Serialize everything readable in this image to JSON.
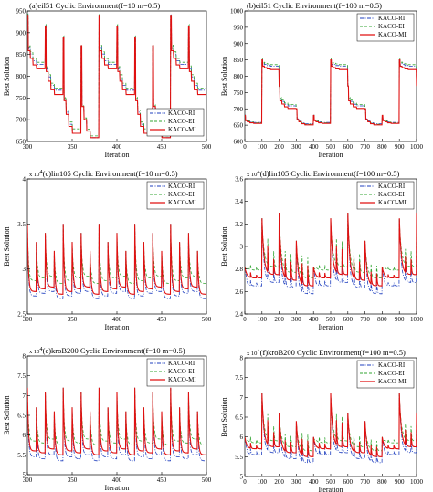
{
  "colors": {
    "KACO-RI": "#1f3fbf",
    "KACO-EI": "#33a533",
    "KACO-MI": "#e01010"
  },
  "chart_data": [
    {
      "type": "line",
      "title": "(a)eil51 Cyclic Environment(f=10 m=0.5)",
      "xlabel": "Iteration",
      "ylabel": "Best Solution",
      "multiplier": "",
      "xlim": [
        300,
        500
      ],
      "ylim": [
        650,
        950
      ],
      "xticks": [
        300,
        350,
        400,
        450,
        500
      ],
      "yticks": [
        650,
        700,
        750,
        800,
        850,
        900,
        950
      ],
      "legend_position": "bottom-right",
      "pattern": {
        "period": 20,
        "cycle": 4,
        "envs": [
          {
            "peak": 940,
            "base": 815
          },
          {
            "peak": 915,
            "base": 755
          },
          {
            "peak": 890,
            "base": 665
          },
          {
            "peak": 870,
            "base": 655
          }
        ],
        "spikes": 0,
        "sharp": false
      },
      "series_offsets": {
        "KACO-RI": [
          10,
          10,
          5,
          0
        ],
        "KACO-EI": [
          15,
          15,
          10,
          4
        ],
        "KACO-MI": [
          0,
          0,
          0,
          0
        ]
      },
      "series": [
        {
          "name": "KACO-RI"
        },
        {
          "name": "KACO-EI"
        },
        {
          "name": "KACO-MI"
        }
      ]
    },
    {
      "type": "line",
      "title": "(b)eil51 Cyclic Environment(f=100 m=0.5)",
      "xlabel": "Iteration",
      "ylabel": "Best Solution",
      "multiplier": "",
      "xlim": [
        0,
        1000
      ],
      "ylim": [
        600,
        1000
      ],
      "xticks": [
        0,
        100,
        200,
        300,
        400,
        500,
        600,
        700,
        800,
        900,
        1000
      ],
      "yticks": [
        600,
        650,
        700,
        750,
        800,
        850,
        900,
        950,
        1000
      ],
      "legend_position": "top-right",
      "pattern": {
        "period": 100,
        "cycle": 4,
        "envs": [
          {
            "peak": 680,
            "base": 655
          },
          {
            "peak": 850,
            "base": 820
          },
          {
            "peak": 770,
            "base": 700
          },
          {
            "peak": 700,
            "base": 650
          }
        ],
        "spikes": 0,
        "sharp": false
      },
      "series_offsets": {
        "KACO-RI": [
          3,
          10,
          8,
          3
        ],
        "KACO-EI": [
          2,
          15,
          12,
          2
        ],
        "KACO-MI": [
          0,
          0,
          0,
          0
        ]
      },
      "series": [
        {
          "name": "KACO-RI"
        },
        {
          "name": "KACO-EI"
        },
        {
          "name": "KACO-MI"
        }
      ]
    },
    {
      "type": "line",
      "title": "(c)lin105 Cyclic Environment(f=10 m=0.5)",
      "xlabel": "Iteration",
      "ylabel": "Best Solution",
      "multiplier": "x 10",
      "xlim": [
        300,
        500
      ],
      "ylim": [
        2.5,
        4
      ],
      "xticks": [
        300,
        350,
        400,
        450,
        500
      ],
      "yticks": [
        2.5,
        3,
        3.5,
        4
      ],
      "legend_position": "top-right",
      "pattern": {
        "period": 10,
        "cycle": 4,
        "envs": [
          {
            "peak": 3.5,
            "base": 2.75
          },
          {
            "peak": 3.3,
            "base": 2.78
          },
          {
            "peak": 3.4,
            "base": 2.8
          },
          {
            "peak": 3.2,
            "base": 2.72
          }
        ],
        "spikes": 0,
        "sharp": true
      },
      "series_offsets": {
        "KACO-RI": [
          -0.05,
          -0.05,
          -0.05,
          -0.05
        ],
        "KACO-EI": [
          0.12,
          0.12,
          0.12,
          0.12
        ],
        "KACO-MI": [
          0,
          0,
          0,
          0
        ]
      },
      "series": [
        {
          "name": "KACO-RI"
        },
        {
          "name": "KACO-EI"
        },
        {
          "name": "KACO-MI"
        }
      ]
    },
    {
      "type": "line",
      "title": "(d)lin105 Cyclic Environment(f=100 m=0.5)",
      "xlabel": "Iteration",
      "ylabel": "Best Solution",
      "multiplier": "x 10",
      "xlim": [
        0,
        1000
      ],
      "ylim": [
        2.4,
        3.6
      ],
      "xticks": [
        0,
        100,
        200,
        300,
        400,
        500,
        600,
        700,
        800,
        900,
        1000
      ],
      "yticks": [
        2.4,
        2.6,
        2.8,
        3,
        3.2,
        3.4,
        3.6
      ],
      "legend_position": "top-right",
      "pattern": {
        "period": 100,
        "cycle": 4,
        "envs": [
          {
            "peak": 2.82,
            "base": 2.72
          },
          {
            "peak": 3.25,
            "base": 2.75
          },
          {
            "peak": 3.3,
            "base": 2.7
          },
          {
            "peak": 3.05,
            "base": 2.65
          }
        ],
        "spikes": 2,
        "sharp": true
      },
      "series_offsets": {
        "KACO-RI": [
          -0.07,
          -0.07,
          -0.07,
          -0.07
        ],
        "KACO-EI": [
          0.07,
          0.07,
          0.07,
          0.07
        ],
        "KACO-MI": [
          0,
          0,
          0,
          0
        ]
      },
      "series": [
        {
          "name": "KACO-RI"
        },
        {
          "name": "KACO-EI"
        },
        {
          "name": "KACO-MI"
        }
      ]
    },
    {
      "type": "line",
      "title": "(e)kroB200 Cyclic Environment(f=10 m=0.5)",
      "xlabel": "Iteration",
      "ylabel": "Best Solution",
      "multiplier": "x 10",
      "xlim": [
        300,
        500
      ],
      "ylim": [
        5,
        8
      ],
      "xticks": [
        300,
        350,
        400,
        450,
        500
      ],
      "yticks": [
        5,
        5.5,
        6,
        6.5,
        7,
        7.5,
        8
      ],
      "legend_position": "top-right",
      "pattern": {
        "period": 10,
        "cycle": 4,
        "envs": [
          {
            "peak": 7.2,
            "base": 5.6
          },
          {
            "peak": 6.7,
            "base": 5.55
          },
          {
            "peak": 7.1,
            "base": 5.65
          },
          {
            "peak": 6.6,
            "base": 5.5
          }
        ],
        "spikes": 0,
        "sharp": true
      },
      "series_offsets": {
        "KACO-RI": [
          -0.15,
          -0.15,
          -0.15,
          -0.15
        ],
        "KACO-EI": [
          0.25,
          0.25,
          0.25,
          0.25
        ],
        "KACO-MI": [
          0,
          0,
          0,
          0
        ]
      },
      "series": [
        {
          "name": "KACO-RI"
        },
        {
          "name": "KACO-EI"
        },
        {
          "name": "KACO-MI"
        }
      ]
    },
    {
      "type": "line",
      "title": "(f)kroB200 Cyclic Environment(f=100 m=0.5)",
      "xlabel": "Iteration",
      "ylabel": "Best Solution",
      "multiplier": "x 10",
      "xlim": [
        0,
        1000
      ],
      "ylim": [
        5,
        8
      ],
      "xticks": [
        0,
        100,
        200,
        300,
        400,
        500,
        600,
        700,
        800,
        900,
        1000
      ],
      "yticks": [
        5,
        5.5,
        6,
        6.5,
        7,
        7.5,
        8
      ],
      "legend_position": "top-right",
      "pattern": {
        "period": 100,
        "cycle": 4,
        "envs": [
          {
            "peak": 6.0,
            "base": 5.7
          },
          {
            "peak": 7.1,
            "base": 5.75
          },
          {
            "peak": 6.6,
            "base": 5.6
          },
          {
            "peak": 6.4,
            "base": 5.5
          }
        ],
        "spikes": 2,
        "sharp": true
      },
      "series_offsets": {
        "KACO-RI": [
          -0.15,
          -0.15,
          -0.15,
          -0.15
        ],
        "KACO-EI": [
          0.15,
          0.15,
          0.15,
          0.15
        ],
        "KACO-MI": [
          0,
          0,
          0,
          0
        ]
      },
      "series": [
        {
          "name": "KACO-RI"
        },
        {
          "name": "KACO-EI"
        },
        {
          "name": "KACO-MI"
        }
      ]
    }
  ]
}
